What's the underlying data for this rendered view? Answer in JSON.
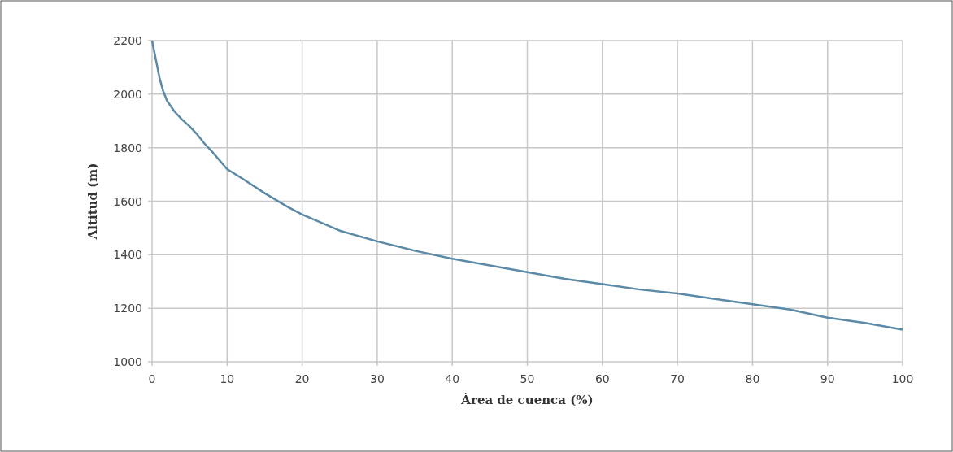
{
  "chart_data": {
    "type": "line",
    "xlabel": "Área de cuenca (%)",
    "ylabel": "Altitud (m)",
    "x": [
      0,
      0.5,
      1,
      1.5,
      2,
      3,
      4,
      5,
      6,
      7,
      8,
      10,
      12,
      15,
      18,
      20,
      25,
      30,
      35,
      40,
      45,
      50,
      55,
      60,
      65,
      70,
      75,
      80,
      85,
      90,
      95,
      100
    ],
    "series": [
      {
        "color": "#5b8aa6",
        "values": [
          2200,
          2130,
          2060,
          2010,
          1975,
          1935,
          1905,
          1880,
          1850,
          1815,
          1785,
          1720,
          1685,
          1630,
          1580,
          1550,
          1490,
          1450,
          1415,
          1385,
          1360,
          1335,
          1310,
          1290,
          1270,
          1255,
          1235,
          1215,
          1195,
          1165,
          1145,
          1120
        ]
      }
    ],
    "xlim": [
      0,
      100
    ],
    "xticks": [
      0,
      10,
      20,
      30,
      40,
      50,
      60,
      70,
      80,
      90,
      100
    ],
    "ylim": [
      1000,
      2200
    ],
    "yticks": [
      1000,
      1200,
      1400,
      1600,
      1800,
      2000,
      2200
    ],
    "grid": true,
    "marker": "none",
    "line_style": "solid"
  }
}
